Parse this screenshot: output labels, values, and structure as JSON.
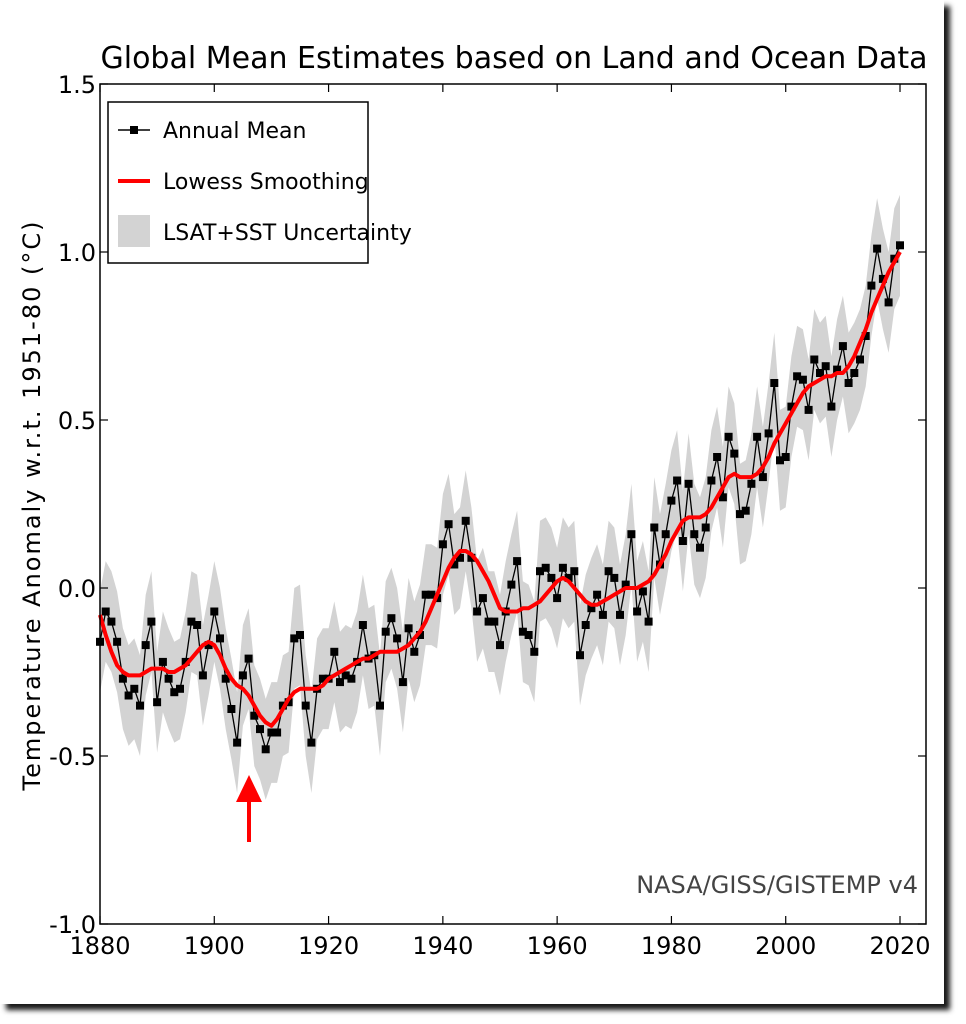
{
  "chart_data": {
    "type": "line",
    "title": "Global Mean Estimates based on Land and Ocean Data",
    "ylabel": "Temperature Anomaly w.r.t. 1951-80 (°C)",
    "xlabel": "",
    "xlim": [
      1880,
      2025
    ],
    "ylim": [
      -1.0,
      1.5
    ],
    "xticks": [
      "1880",
      "1900",
      "1920",
      "1940",
      "1960",
      "1980",
      "2000",
      "2020"
    ],
    "yticks": [
      "1.5",
      "1.0",
      "0.5",
      "0.0",
      "-0.5",
      "-1.0"
    ],
    "grid": false,
    "legend_position": "top-left",
    "legend": {
      "annual": "Annual Mean",
      "lowess": "Lowess Smoothing",
      "uncertainty": "LSAT+SST Uncertainty"
    },
    "credit": "NASA/GISS/GISTEMP v4",
    "annotation": "red arrow pointing at minimum near 1909",
    "colors": {
      "annual": "#000000",
      "lowess": "#ff0000",
      "uncertainty": "#d3d3d3",
      "arrow": "#ff0000"
    },
    "x": [
      1880,
      1881,
      1882,
      1883,
      1884,
      1885,
      1886,
      1887,
      1888,
      1889,
      1890,
      1891,
      1892,
      1893,
      1894,
      1895,
      1896,
      1897,
      1898,
      1899,
      1900,
      1901,
      1902,
      1903,
      1904,
      1905,
      1906,
      1907,
      1908,
      1909,
      1910,
      1911,
      1912,
      1913,
      1914,
      1915,
      1916,
      1917,
      1918,
      1919,
      1920,
      1921,
      1922,
      1923,
      1924,
      1925,
      1926,
      1927,
      1928,
      1929,
      1930,
      1931,
      1932,
      1933,
      1934,
      1935,
      1936,
      1937,
      1938,
      1939,
      1940,
      1941,
      1942,
      1943,
      1944,
      1945,
      1946,
      1947,
      1948,
      1949,
      1950,
      1951,
      1952,
      1953,
      1954,
      1955,
      1956,
      1957,
      1958,
      1959,
      1960,
      1961,
      1962,
      1963,
      1964,
      1965,
      1966,
      1967,
      1968,
      1969,
      1970,
      1971,
      1972,
      1973,
      1974,
      1975,
      1976,
      1977,
      1978,
      1979,
      1980,
      1981,
      1982,
      1983,
      1984,
      1985,
      1986,
      1987,
      1988,
      1989,
      1990,
      1991,
      1992,
      1993,
      1994,
      1995,
      1996,
      1997,
      1998,
      1999,
      2000,
      2001,
      2002,
      2003,
      2004,
      2005,
      2006,
      2007,
      2008,
      2009,
      2010,
      2011,
      2012,
      2013,
      2014,
      2015,
      2016,
      2017,
      2018,
      2019,
      2020
    ],
    "series": [
      {
        "name": "Annual Mean",
        "values": [
          -0.16,
          -0.07,
          -0.1,
          -0.16,
          -0.27,
          -0.32,
          -0.3,
          -0.35,
          -0.17,
          -0.1,
          -0.34,
          -0.22,
          -0.27,
          -0.31,
          -0.3,
          -0.22,
          -0.1,
          -0.11,
          -0.26,
          -0.17,
          -0.07,
          -0.15,
          -0.27,
          -0.36,
          -0.46,
          -0.26,
          -0.21,
          -0.38,
          -0.42,
          -0.48,
          -0.43,
          -0.43,
          -0.35,
          -0.34,
          -0.15,
          -0.14,
          -0.35,
          -0.46,
          -0.3,
          -0.27,
          -0.27,
          -0.19,
          -0.28,
          -0.26,
          -0.27,
          -0.22,
          -0.11,
          -0.21,
          -0.2,
          -0.35,
          -0.13,
          -0.09,
          -0.15,
          -0.28,
          -0.12,
          -0.19,
          -0.14,
          -0.02,
          -0.02,
          -0.03,
          0.13,
          0.19,
          0.07,
          0.09,
          0.2,
          0.09,
          -0.07,
          -0.03,
          -0.1,
          -0.1,
          -0.17,
          -0.07,
          0.01,
          0.08,
          -0.13,
          -0.14,
          -0.19,
          0.05,
          0.06,
          0.03,
          -0.03,
          0.06,
          0.03,
          0.05,
          -0.2,
          -0.11,
          -0.06,
          -0.02,
          -0.08,
          0.05,
          0.03,
          -0.08,
          0.01,
          0.16,
          -0.07,
          -0.01,
          -0.1,
          0.18,
          0.07,
          0.16,
          0.26,
          0.32,
          0.14,
          0.31,
          0.16,
          0.12,
          0.18,
          0.32,
          0.39,
          0.27,
          0.45,
          0.4,
          0.22,
          0.23,
          0.31,
          0.45,
          0.33,
          0.46,
          0.61,
          0.38,
          0.39,
          0.54,
          0.63,
          0.62,
          0.53,
          0.68,
          0.64,
          0.66,
          0.54,
          0.65,
          0.72,
          0.61,
          0.64,
          0.68,
          0.75,
          0.9,
          1.01,
          0.92,
          0.85,
          0.98,
          1.02
        ]
      },
      {
        "name": "Lowess Smoothing",
        "values": [
          -0.08,
          -0.14,
          -0.19,
          -0.23,
          -0.25,
          -0.26,
          -0.26,
          -0.26,
          -0.25,
          -0.24,
          -0.24,
          -0.24,
          -0.25,
          -0.25,
          -0.24,
          -0.23,
          -0.21,
          -0.19,
          -0.17,
          -0.16,
          -0.17,
          -0.2,
          -0.24,
          -0.27,
          -0.29,
          -0.3,
          -0.32,
          -0.35,
          -0.38,
          -0.4,
          -0.41,
          -0.39,
          -0.36,
          -0.33,
          -0.31,
          -0.3,
          -0.3,
          -0.3,
          -0.3,
          -0.29,
          -0.27,
          -0.26,
          -0.25,
          -0.24,
          -0.23,
          -0.22,
          -0.21,
          -0.21,
          -0.2,
          -0.19,
          -0.19,
          -0.19,
          -0.19,
          -0.18,
          -0.17,
          -0.15,
          -0.13,
          -0.1,
          -0.06,
          -0.02,
          0.02,
          0.06,
          0.09,
          0.11,
          0.11,
          0.1,
          0.08,
          0.05,
          0.02,
          -0.02,
          -0.06,
          -0.07,
          -0.07,
          -0.07,
          -0.06,
          -0.06,
          -0.05,
          -0.04,
          -0.02,
          0.0,
          0.02,
          0.03,
          0.02,
          0.0,
          -0.02,
          -0.04,
          -0.05,
          -0.05,
          -0.04,
          -0.03,
          -0.02,
          -0.01,
          0.0,
          0.0,
          0.0,
          0.01,
          0.02,
          0.04,
          0.07,
          0.1,
          0.14,
          0.17,
          0.2,
          0.21,
          0.21,
          0.21,
          0.22,
          0.24,
          0.27,
          0.3,
          0.33,
          0.34,
          0.33,
          0.33,
          0.33,
          0.34,
          0.36,
          0.39,
          0.43,
          0.46,
          0.49,
          0.52,
          0.55,
          0.58,
          0.6,
          0.61,
          0.62,
          0.63,
          0.63,
          0.64,
          0.64,
          0.66,
          0.69,
          0.73,
          0.77,
          0.82,
          0.86,
          0.9,
          0.94,
          0.97,
          1.0
        ]
      }
    ],
    "uncertainty_halfwidth": 0.15
  }
}
